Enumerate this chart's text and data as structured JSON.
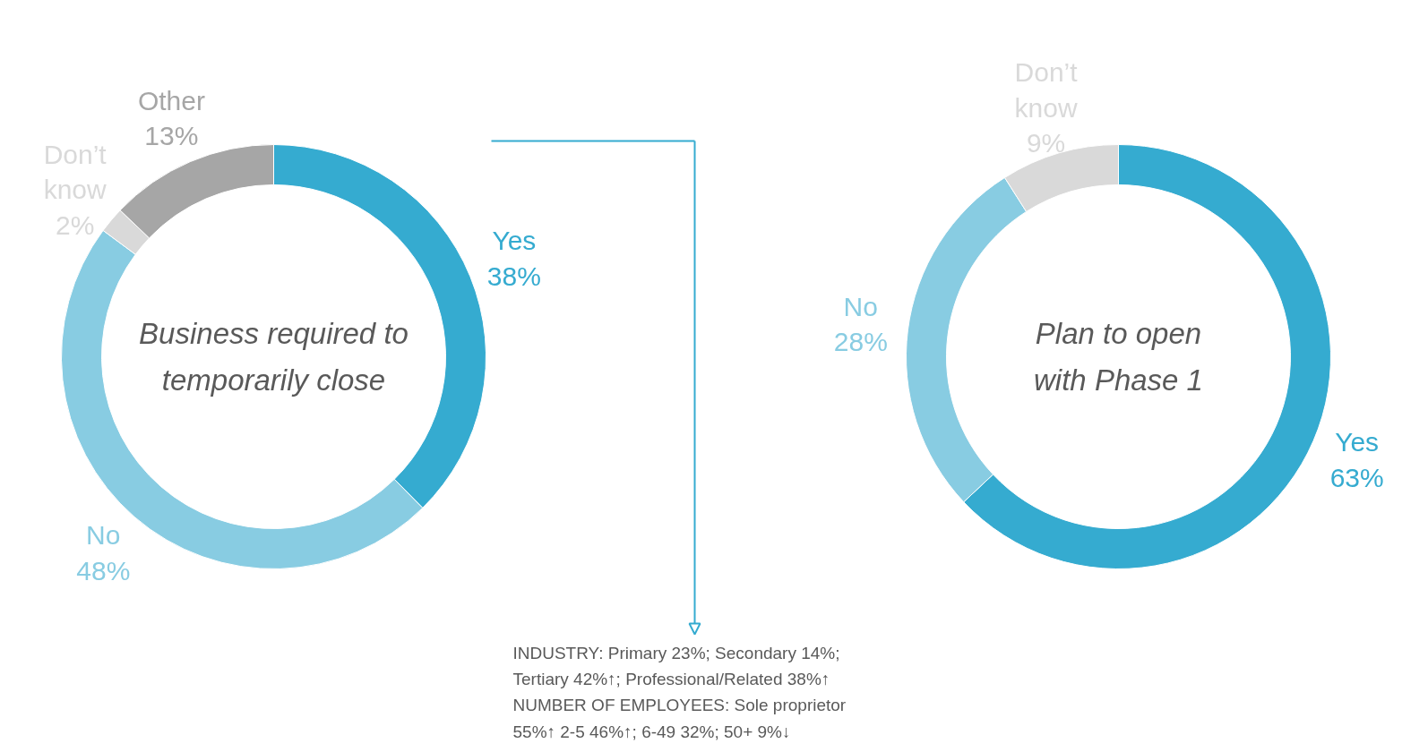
{
  "chart_data": [
    {
      "type": "donut",
      "title": "Business required to\ntemporarily close",
      "categories": [
        "Yes",
        "No",
        "Don’t\nknow",
        "Other"
      ],
      "values": [
        38,
        48,
        2,
        13
      ],
      "value_labels": [
        "38%",
        "48%",
        "2%",
        "13%"
      ],
      "colors": [
        "#35abd0",
        "#88cce2",
        "#d9d9d9",
        "#a6a6a6"
      ],
      "annotations": [
        "INDUSTRY: Primary 23%; Secondary 14%;\nTertiary 42%↑; Professional/Related 38%↑\nNUMBER OF EMPLOYEES: Sole proprietor\n55%↑ 2-5 46%↑; 6-49 32%; 50+ 9%↓"
      ]
    },
    {
      "type": "donut",
      "title": "Plan to open\nwith Phase 1",
      "categories": [
        "Yes",
        "No",
        "Don’t\nknow"
      ],
      "values": [
        63,
        28,
        9
      ],
      "value_labels": [
        "63%",
        "28%",
        "9%"
      ],
      "colors": [
        "#35abd0",
        "#88cce2",
        "#d9d9d9"
      ]
    }
  ]
}
